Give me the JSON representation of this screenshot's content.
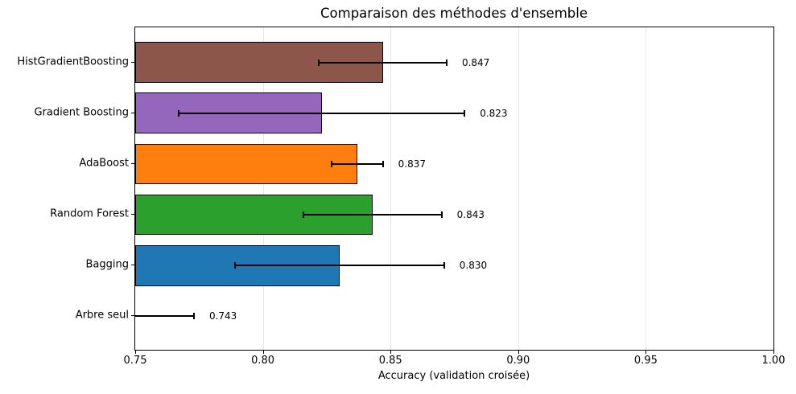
{
  "chart_data": {
    "type": "bar",
    "orientation": "horizontal",
    "title": "Comparaison des méthodes d'ensemble",
    "xlabel": "Accuracy (validation croisée)",
    "ylabel": "",
    "categories": [
      "HistGradientBoosting",
      "Gradient Boosting",
      "AdaBoost",
      "Random Forest",
      "Bagging",
      "Arbre seul"
    ],
    "values": [
      0.847,
      0.823,
      0.837,
      0.843,
      0.83,
      0.743
    ],
    "errors": [
      0.025,
      0.056,
      0.01,
      0.027,
      0.041,
      0.03
    ],
    "value_labels": [
      "0.847",
      "0.823",
      "0.837",
      "0.843",
      "0.830",
      "0.743"
    ],
    "bar_colors": [
      "#8c564b",
      "#9467bd",
      "#ff7f0e",
      "#2ca02c",
      "#1f77b4",
      "#d62728"
    ],
    "bar_edge_color": "#000000",
    "error_bar_color": "#000000",
    "xlim": [
      0.75,
      1.0
    ],
    "xticks": [
      0.75,
      0.8,
      0.85,
      0.9,
      0.95,
      1.0
    ],
    "xtick_labels": [
      "0.75",
      "0.80",
      "0.85",
      "0.90",
      "0.95",
      "1.00"
    ],
    "grid": true,
    "grid_axis": "x",
    "gridline_color": "#e6e6e6",
    "legend": null
  }
}
